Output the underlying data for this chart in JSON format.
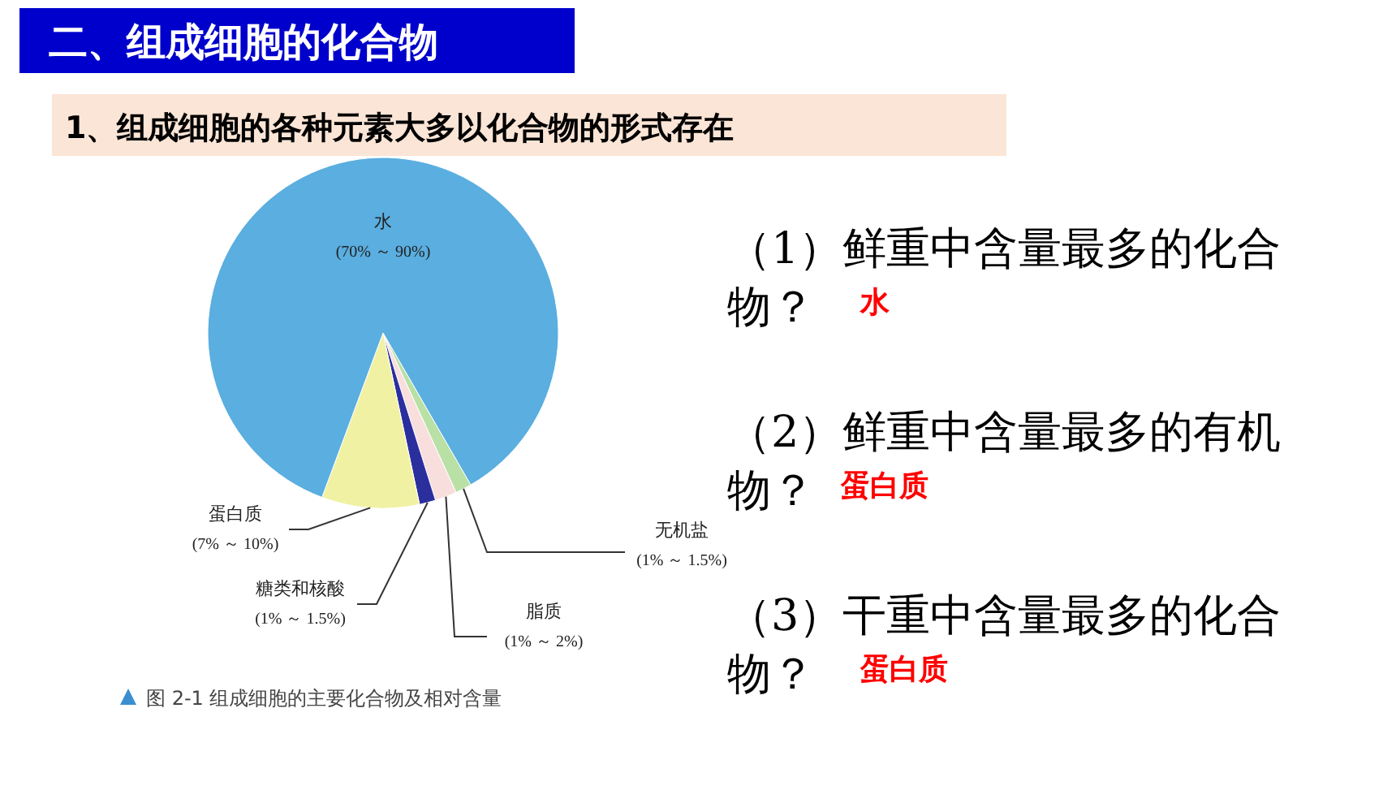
{
  "chart_data": {
    "type": "pie",
    "title": "二、组成细胞的化合物",
    "subtitle": "1、组成细胞的各种元素大多以化合物的形式存在",
    "categories": [
      "无机盐\n(1% ～ 1.5%)",
      "脂质\n(1% ～ 2%)",
      "糖类和核酸\n(1% ～ 1.5%)",
      "蛋白质\n(7% ～ 10%)",
      "水\n(70% ～ 90%)"
    ],
    "values": [
      1.5,
      2,
      1.5,
      9,
      86
    ],
    "colors": [
      "#b9e0a5",
      "#f9dede",
      "#2b2f9e",
      "#f1f1a3",
      "#5aaee0"
    ],
    "annotations": [
      "图 2-1   组成细胞的主要化合物及相对含量",
      "（1）鲜重中含量最多的化合物？",
      "水",
      "（2）鲜重中含量最多的有机物？",
      "蛋白质",
      "（3）干重中含量最多的化合物？",
      "蛋白质"
    ]
  }
}
